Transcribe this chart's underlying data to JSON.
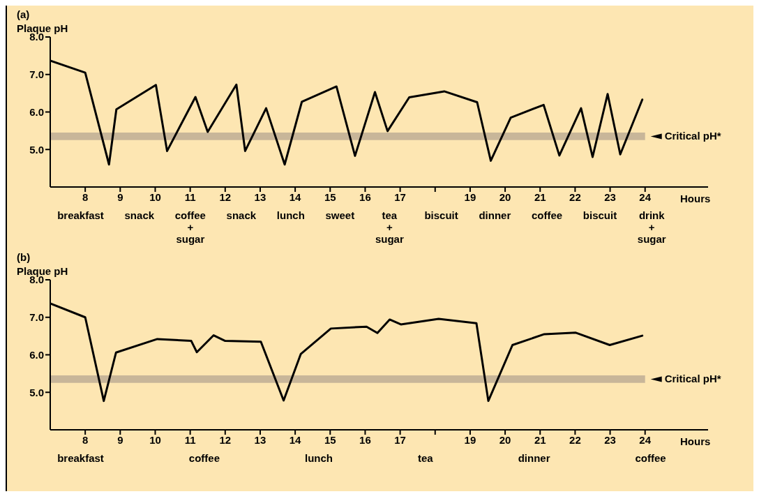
{
  "chart_data": [
    {
      "type": "line",
      "title": "(a)",
      "ylabel": "Plaque pH",
      "xlabel": "Hours",
      "marker": "none",
      "line_style": "solid",
      "xlim": [
        7,
        25.8
      ],
      "ylim": [
        4,
        8
      ],
      "xticks": [
        8,
        9,
        10,
        11,
        12,
        13,
        14,
        15,
        16,
        17,
        {
          "value": 18,
          "label": null
        },
        19,
        20,
        21,
        22,
        23,
        24
      ],
      "yticks": [
        {
          "value": 5,
          "label": "5.0"
        },
        {
          "value": 6,
          "label": "6.0"
        },
        {
          "value": 7,
          "label": "7.0"
        },
        {
          "value": 8,
          "label": "8.0"
        }
      ],
      "series": [
        {
          "color": "#000000",
          "x": [
            7,
            8,
            8.68,
            8.89,
            10.02,
            10.34,
            11.15,
            11.5,
            12.32,
            12.57,
            13.17,
            13.7,
            14.19,
            15.18,
            15.71,
            16.28,
            16.64,
            17.26,
            18.26,
            19.2,
            19.59,
            20.16,
            21.1,
            21.55,
            22.17,
            22.5,
            22.93,
            23.29,
            23.92
          ],
          "values": [
            7.37,
            7.05,
            4.6,
            6.07,
            6.72,
            4.96,
            6.4,
            5.47,
            6.73,
            4.96,
            6.1,
            4.6,
            6.27,
            6.68,
            4.83,
            6.53,
            5.49,
            6.39,
            6.55,
            6.26,
            4.7,
            5.85,
            6.19,
            4.84,
            6.1,
            4.8,
            6.48,
            4.87,
            6.33
          ]
        }
      ],
      "bands": [
        {
          "axis": "y",
          "from": 5.25,
          "to": 5.45,
          "label": "Critical pH*",
          "color": "#c8b699"
        }
      ],
      "annotations": [
        "breakfast",
        "snack",
        "coffee\n+\nsugar",
        "snack",
        "lunch",
        "sweet",
        "tea\n+\nsugar",
        "biscuit",
        "dinner",
        "coffee",
        "biscuit",
        "drink\n+\nsugar"
      ]
    },
    {
      "type": "line",
      "title": "(b)",
      "ylabel": "Plaque pH",
      "xlabel": "Hours",
      "marker": "none",
      "line_style": "solid",
      "xlim": [
        7,
        25.8
      ],
      "ylim": [
        4,
        8
      ],
      "xticks": [
        8,
        9,
        10,
        11,
        12,
        13,
        14,
        15,
        16,
        17,
        {
          "value": 18,
          "label": null
        },
        19,
        20,
        21,
        22,
        23,
        24
      ],
      "yticks": [
        {
          "value": 5,
          "label": "5.0"
        },
        {
          "value": 6,
          "label": "6.0"
        },
        {
          "value": 7,
          "label": "7.0"
        },
        {
          "value": 8,
          "label": "8.0"
        }
      ],
      "series": [
        {
          "color": "#000000",
          "x": [
            7,
            8,
            8.53,
            8.88,
            10.06,
            11.03,
            11.19,
            11.67,
            12,
            13.02,
            13.67,
            14.16,
            15.02,
            16.04,
            16.35,
            16.7,
            17.02,
            18.1,
            19.18,
            19.52,
            20.21,
            21.12,
            22.02,
            22.99,
            23.92
          ],
          "values": [
            7.37,
            7.0,
            4.77,
            6.06,
            6.42,
            6.37,
            6.07,
            6.52,
            6.37,
            6.35,
            4.78,
            6.02,
            6.7,
            6.75,
            6.58,
            6.94,
            6.81,
            6.96,
            6.84,
            4.77,
            6.26,
            6.55,
            6.59,
            6.26,
            6.51
          ]
        }
      ],
      "bands": [
        {
          "axis": "y",
          "from": 5.25,
          "to": 5.45,
          "label": "Critical pH*",
          "color": "#c8b699"
        }
      ],
      "annotations": [
        "breakfast",
        "coffee",
        "lunch",
        "tea",
        "dinner",
        "coffee"
      ]
    }
  ]
}
